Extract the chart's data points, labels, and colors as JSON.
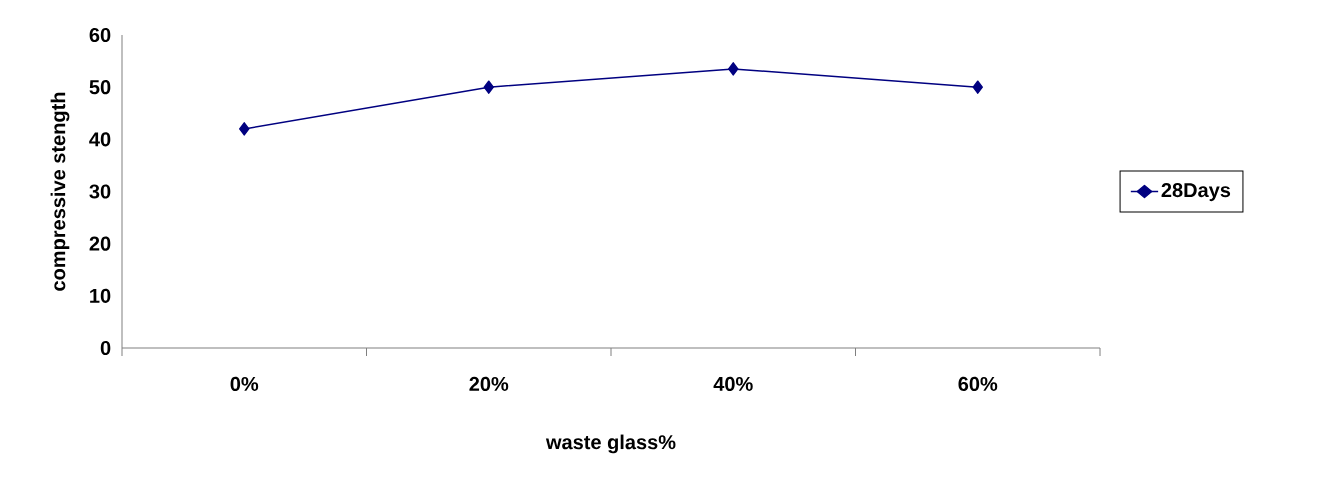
{
  "chart_data": {
    "type": "line",
    "xlabel": "waste glass%",
    "ylabel": "compressive stength",
    "categories": [
      "0%",
      "20%",
      "40%",
      "60%"
    ],
    "series": [
      {
        "name": "28Days",
        "color": "#000080",
        "values": [
          42,
          50,
          53.5,
          50
        ]
      }
    ],
    "ylim": [
      0,
      60
    ],
    "yticks": [
      0,
      10,
      20,
      30,
      40,
      50,
      60
    ],
    "marker": "diamond",
    "legend": "right",
    "grid": false,
    "line_style": "solid"
  }
}
